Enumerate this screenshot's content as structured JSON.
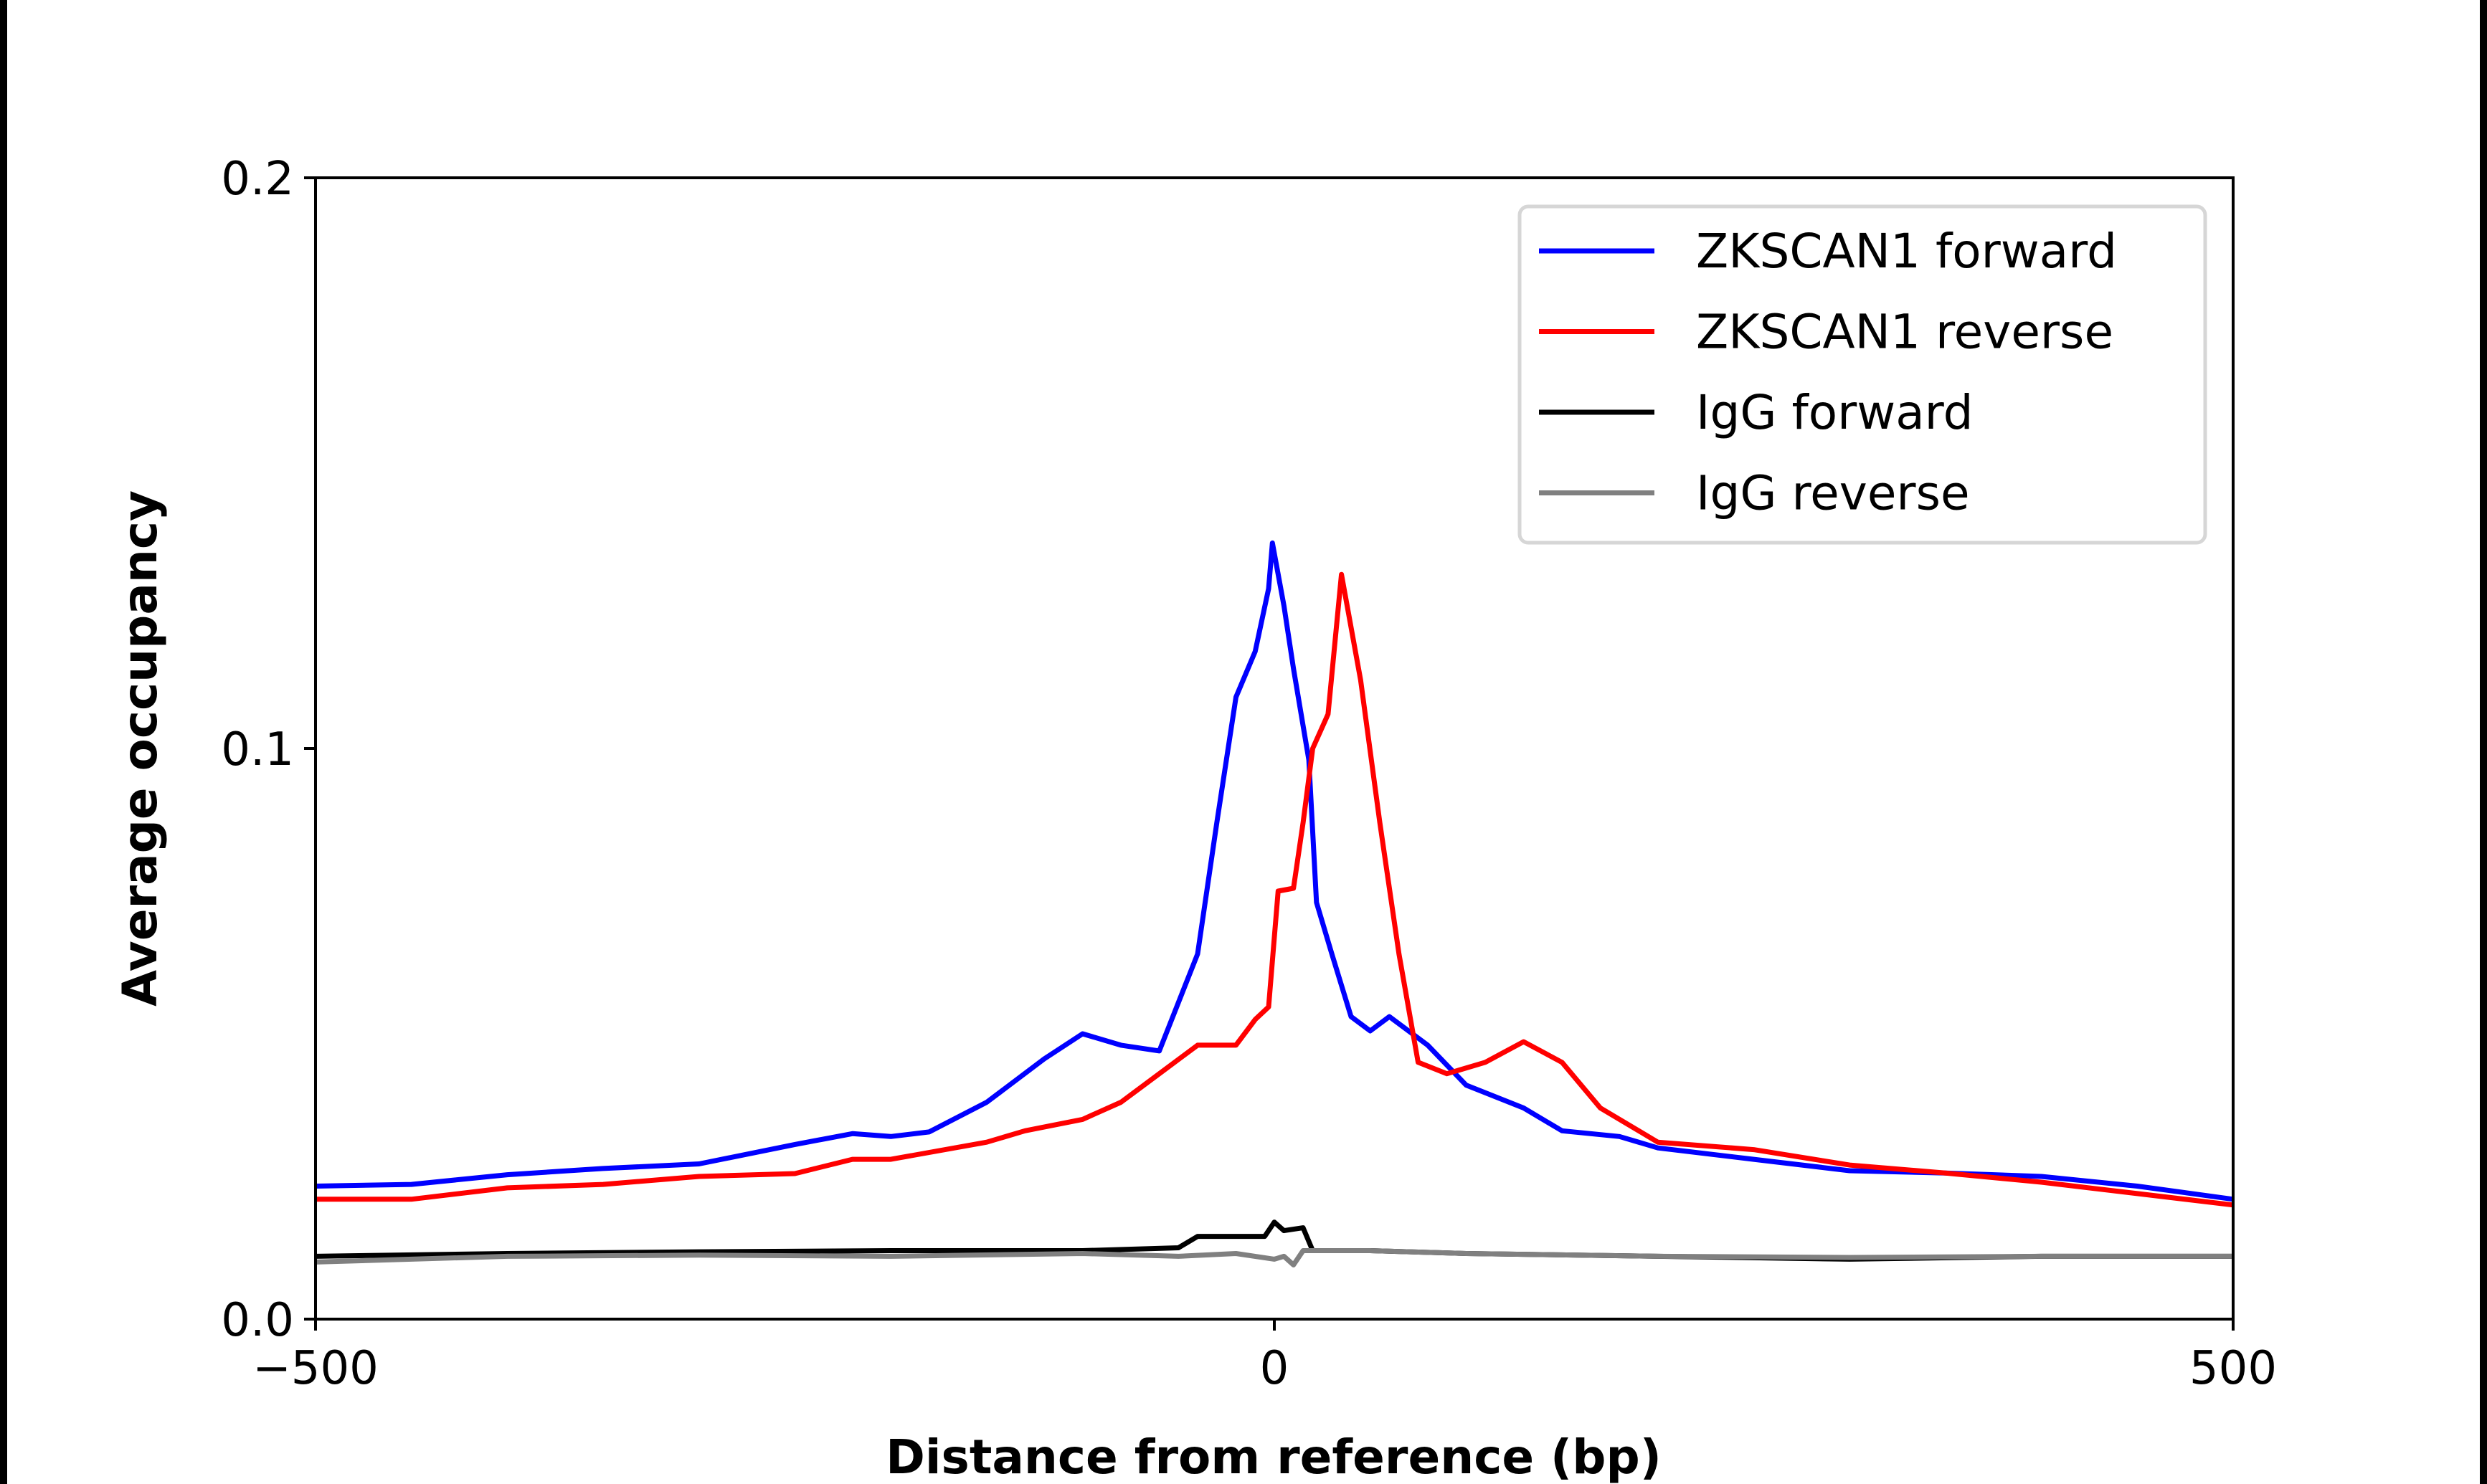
{
  "chart_data": {
    "type": "line",
    "title": "",
    "xlabel": "Distance from reference (bp)",
    "ylabel": "Average occupancy",
    "xlim": [
      -500,
      500
    ],
    "ylim": [
      0.0,
      0.2
    ],
    "xticks": [
      -500,
      0,
      500
    ],
    "xtick_labels": [
      "−500",
      "0",
      "500"
    ],
    "yticks": [
      0.0,
      0.1,
      0.2
    ],
    "ytick_labels": [
      "0.0",
      "0.1",
      "0.2"
    ],
    "grid": false,
    "legend_position": "top-right",
    "series": [
      {
        "name": "ZKSCAN1 forward",
        "color": "#0000ff",
        "x": [
          -500,
          -450,
          -400,
          -350,
          -300,
          -250,
          -220,
          -200,
          -180,
          -150,
          -120,
          -100,
          -80,
          -60,
          -40,
          -30,
          -20,
          -10,
          -3,
          -1,
          5,
          10,
          18,
          22,
          30,
          40,
          50,
          60,
          80,
          100,
          130,
          150,
          180,
          200,
          250,
          300,
          350,
          400,
          450,
          500
        ],
        "y": [
          0.0233,
          0.0236,
          0.0253,
          0.0264,
          0.0272,
          0.0306,
          0.0325,
          0.032,
          0.0328,
          0.038,
          0.0456,
          0.05,
          0.048,
          0.047,
          0.064,
          0.087,
          0.109,
          0.117,
          0.128,
          0.136,
          0.125,
          0.114,
          0.098,
          0.073,
          0.064,
          0.053,
          0.0505,
          0.053,
          0.048,
          0.041,
          0.037,
          0.033,
          0.032,
          0.03,
          0.028,
          0.026,
          0.0256,
          0.025,
          0.0233,
          0.021
        ]
      },
      {
        "name": "ZKSCAN1 reverse",
        "color": "#ff0000",
        "x": [
          -500,
          -450,
          -400,
          -350,
          -300,
          -250,
          -220,
          -200,
          -150,
          -130,
          -100,
          -80,
          -60,
          -40,
          -20,
          -10,
          -3,
          2,
          10,
          15,
          20,
          28,
          35,
          45,
          55,
          65,
          75,
          90,
          110,
          130,
          150,
          170,
          200,
          250,
          300,
          350,
          400,
          450,
          500
        ],
        "y": [
          0.021,
          0.021,
          0.023,
          0.0236,
          0.025,
          0.0255,
          0.028,
          0.028,
          0.031,
          0.033,
          0.035,
          0.038,
          0.043,
          0.048,
          0.048,
          0.0525,
          0.0547,
          0.075,
          0.0755,
          0.087,
          0.1,
          0.106,
          0.1305,
          0.112,
          0.087,
          0.064,
          0.045,
          0.043,
          0.045,
          0.0486,
          0.045,
          0.037,
          0.031,
          0.0297,
          0.027,
          0.0256,
          0.024,
          0.022,
          0.02
        ]
      },
      {
        "name": "IgG forward",
        "color": "#000000",
        "x": [
          -500,
          -400,
          -300,
          -200,
          -100,
          -50,
          -40,
          -5,
          0,
          5,
          15,
          20,
          50,
          100,
          200,
          300,
          400,
          500
        ],
        "y": [
          0.011,
          0.0115,
          0.0118,
          0.012,
          0.012,
          0.0125,
          0.0145,
          0.0145,
          0.017,
          0.0155,
          0.016,
          0.012,
          0.012,
          0.0115,
          0.011,
          0.0105,
          0.011,
          0.011
        ]
      },
      {
        "name": "IgG reverse",
        "color": "#808080",
        "x": [
          -500,
          -400,
          -300,
          -200,
          -100,
          -50,
          -20,
          0,
          5,
          10,
          15,
          20,
          50,
          100,
          200,
          300,
          400,
          500
        ],
        "y": [
          0.01,
          0.011,
          0.0112,
          0.011,
          0.0115,
          0.011,
          0.0115,
          0.0105,
          0.011,
          0.0095,
          0.012,
          0.012,
          0.012,
          0.0115,
          0.011,
          0.0108,
          0.011,
          0.011
        ]
      }
    ]
  }
}
